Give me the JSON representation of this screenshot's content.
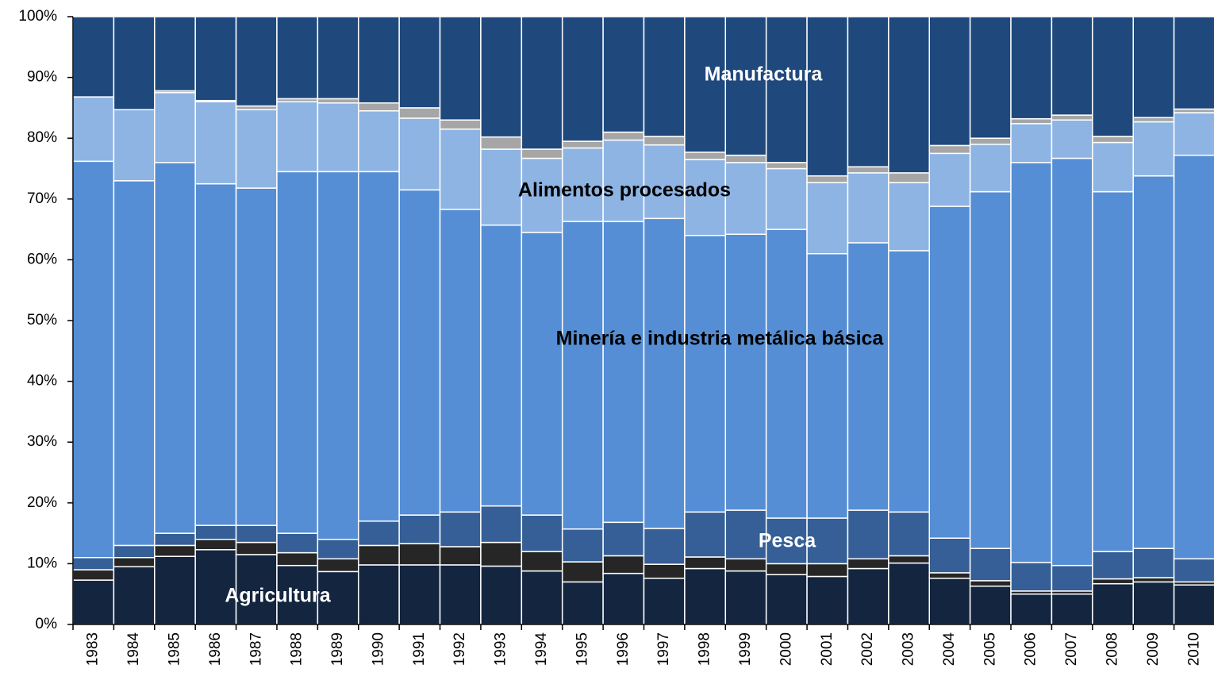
{
  "chart_data": {
    "type": "stacked_bar",
    "categories": [
      "1983",
      "1984",
      "1985",
      "1986",
      "1987",
      "1988",
      "1989",
      "1990",
      "1991",
      "1992",
      "1993",
      "1994",
      "1995",
      "1996",
      "1997",
      "1998",
      "1999",
      "2000",
      "2001",
      "2002",
      "2003",
      "2004",
      "2005",
      "2006",
      "2007",
      "2008",
      "2009",
      "2010"
    ],
    "series": [
      {
        "name": "Agricultura",
        "color": "#13253f",
        "values": [
          7.3,
          9.5,
          11.2,
          12.3,
          11.5,
          9.7,
          8.7,
          9.8,
          9.8,
          9.8,
          9.6,
          8.8,
          7,
          8.4,
          7.6,
          9.2,
          8.8,
          8.2,
          7.9,
          9.2,
          10.1,
          7.6,
          6.3,
          5,
          5,
          6.7,
          7,
          6.5
        ]
      },
      {
        "color": "#262626",
        "values": [
          1.7,
          1.5,
          1.8,
          1.7,
          2,
          2.1,
          2.1,
          3.2,
          3.5,
          3,
          3.9,
          3.2,
          3.3,
          2.9,
          2.3,
          1.9,
          2,
          1.8,
          2.1,
          1.6,
          1.2,
          0.9,
          0.9,
          0.5,
          0.5,
          0.8,
          0.7,
          0.5
        ]
      },
      {
        "name": "Pesca",
        "color": "#355f96",
        "values": [
          2,
          2,
          2,
          2.3,
          2.8,
          3.2,
          3.2,
          4,
          4.7,
          5.7,
          6,
          6,
          5.4,
          5.5,
          5.9,
          7.4,
          8,
          7.5,
          7.5,
          8,
          7.2,
          5.7,
          5.3,
          4.7,
          4.2,
          4.5,
          4.8,
          3.8
        ]
      },
      {
        "name": "Minería e industria metálica básica",
        "color": "#558ed5",
        "values": [
          65.2,
          60,
          61,
          56.2,
          55.5,
          59.5,
          60.5,
          57.5,
          53.5,
          49.8,
          46.2,
          46.5,
          50.6,
          49.5,
          51,
          45.5,
          45.4,
          47.5,
          43.5,
          44,
          43,
          54.6,
          58.7,
          65.8,
          67,
          59.2,
          61.3,
          66.4
        ]
      },
      {
        "name": "Alimentos procesados",
        "color": "#8eb4e3",
        "values": [
          10.6,
          11.7,
          11.5,
          13.5,
          12.9,
          11.5,
          11.3,
          10,
          11.8,
          13.2,
          12.5,
          12.2,
          12.1,
          13.4,
          12.1,
          12.5,
          11.8,
          10,
          11.7,
          11.5,
          11.2,
          8.7,
          7.8,
          6.4,
          6.3,
          8.1,
          8.9,
          7
        ]
      },
      {
        "color": "#a6a6a6",
        "values": [
          0,
          0,
          0.3,
          0.2,
          0.6,
          0.5,
          0.7,
          1.3,
          1.7,
          1.5,
          2,
          1.5,
          1.1,
          1.3,
          1.4,
          1.2,
          1.2,
          1,
          1.1,
          1,
          1.6,
          1.3,
          1,
          0.8,
          0.8,
          1,
          0.7,
          0.6
        ]
      },
      {
        "name": "Manufactura",
        "color": "#1f497d",
        "values": [
          13.2,
          15.3,
          12.2,
          13.8,
          14.7,
          13.5,
          13.5,
          14.2,
          15,
          17,
          19.8,
          21.8,
          20.5,
          19,
          19.7,
          22.3,
          22.8,
          24,
          26.2,
          24.7,
          25.7,
          21.2,
          20,
          16.8,
          16.2,
          19.7,
          16.6,
          15.2
        ]
      }
    ],
    "ylim": [
      0,
      100
    ],
    "yticks": [
      {
        "value": 0,
        "label": "0%"
      },
      {
        "value": 10,
        "label": "10%"
      },
      {
        "value": 20,
        "label": "20%"
      },
      {
        "value": 30,
        "label": "30%"
      },
      {
        "value": 40,
        "label": "40%"
      },
      {
        "value": 50,
        "label": "50%"
      },
      {
        "value": 60,
        "label": "60%"
      },
      {
        "value": 70,
        "label": "70%"
      },
      {
        "value": 80,
        "label": "80%"
      },
      {
        "value": 90,
        "label": "90%"
      },
      {
        "value": 100,
        "label": "100%"
      }
    ]
  }
}
